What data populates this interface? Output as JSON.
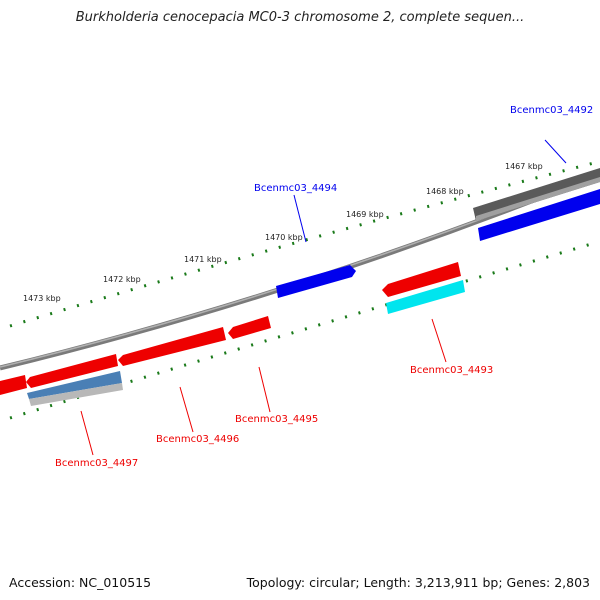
{
  "title": "Burkholderia cenocepacia MC0-3 chromosome 2, complete sequen...",
  "accession": "Accession: NC_010515",
  "summary": "Topology: circular; Length: 3,213,911 bp; Genes: 2,803",
  "tick_labels": [
    "1467 kbp",
    "1468 kbp",
    "1469 kbp",
    "1470 kbp",
    "1471 kbp",
    "1472 kbp",
    "1473 kbp"
  ],
  "genes": {
    "g4492": "Bcenmc03_4492",
    "g4494": "Bcenmc03_4494",
    "g4493": "Bcenmc03_4493",
    "g4495": "Bcenmc03_4495",
    "g4496": "Bcenmc03_4496",
    "g4497": "Bcenmc03_4497"
  },
  "colors": {
    "forward": "#0000ee",
    "reverse": "#ee0000",
    "backbone": "#808080",
    "ticks": "#1a7a1a",
    "cyan": "#00e5ee",
    "steel": "#4a7fb5"
  }
}
